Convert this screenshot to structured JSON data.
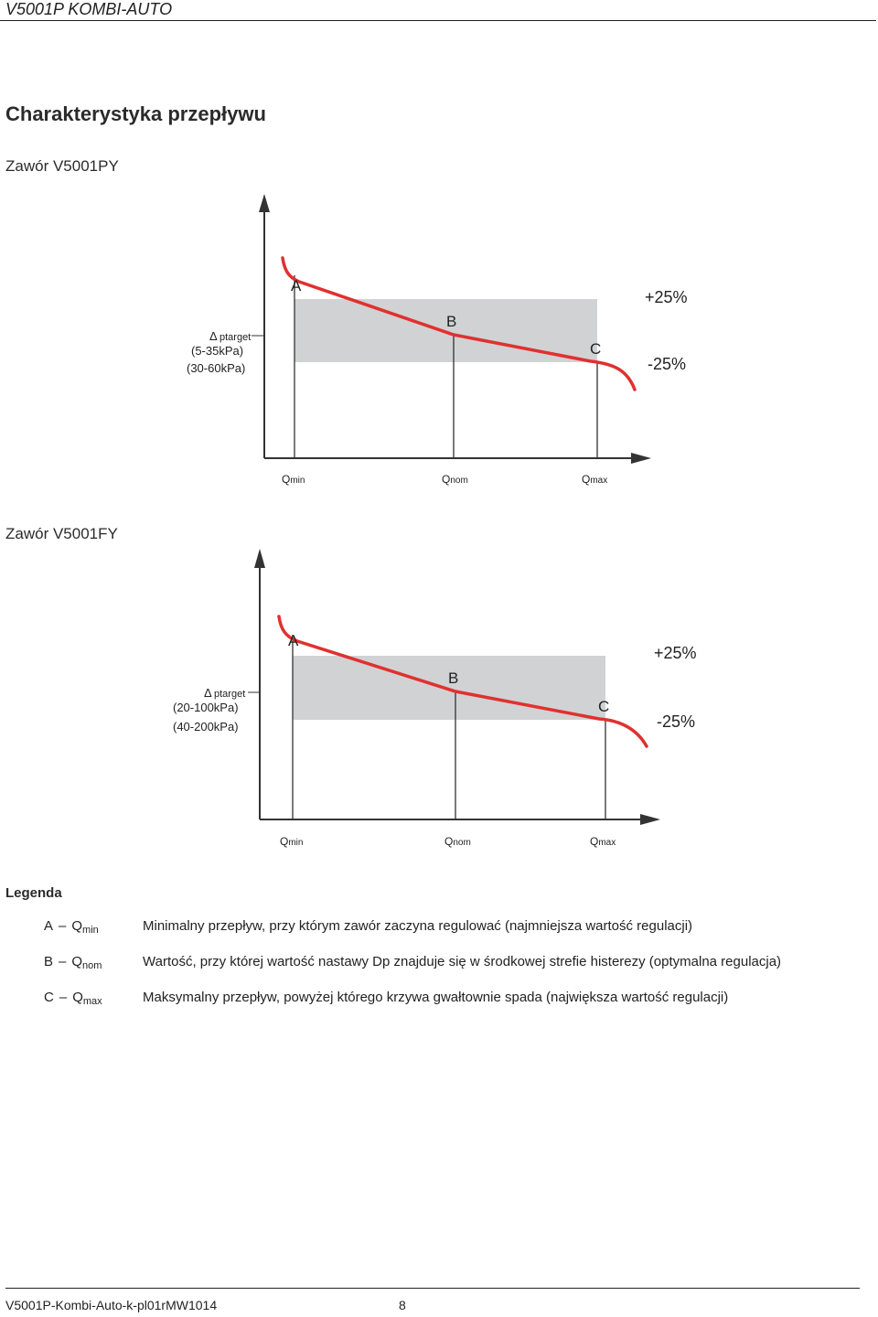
{
  "header": {
    "title": "V5001P  KOMBI-AUTO"
  },
  "section": {
    "title": "Charakterystyka przepływu"
  },
  "charts": [
    {
      "title": "Zawór V5001PY",
      "delta": "Δ",
      "ylabel": "ptarget",
      "ranges": [
        "(5-35kPa)",
        "(30-60kPa)"
      ],
      "points": [
        "A",
        "B",
        "C"
      ],
      "band": [
        "+25%",
        "-25%"
      ],
      "ticks": {
        "min_q": "Q",
        "min_sub": "min",
        "nom_q": "Q",
        "nom_sub": "nom",
        "max_q": "Q",
        "max_sub": "max"
      }
    },
    {
      "title": "Zawór V5001FY",
      "delta": "Δ",
      "ylabel": "ptarget",
      "ranges": [
        "(20-100kPa)",
        "(40-200kPa)"
      ],
      "points": [
        "A",
        "B",
        "C"
      ],
      "band": [
        "+25%",
        "-25%"
      ],
      "ticks": {
        "min_q": "Q",
        "min_sub": "min",
        "nom_q": "Q",
        "nom_sub": "nom",
        "max_q": "Q",
        "max_sub": "max"
      }
    }
  ],
  "chart_data": [
    {
      "type": "line",
      "title": "Zawór V5001PY",
      "ylabel": "Δptarget (5-35kPa) (30-60kPa)",
      "categories": [
        "Qmin",
        "Qnom",
        "Qmax"
      ],
      "points": [
        {
          "name": "A",
          "x": "Qmin"
        },
        {
          "name": "B",
          "x": "Qnom"
        },
        {
          "name": "C",
          "x": "Qmax"
        }
      ],
      "tolerance_band": [
        "+25%",
        "-25%"
      ],
      "colors": {
        "curve": "#e0312f",
        "band": "#d1d2d4",
        "axes": "#333333"
      }
    },
    {
      "type": "line",
      "title": "Zawór V5001FY",
      "ylabel": "Δptarget (20-100kPa) (40-200kPa)",
      "categories": [
        "Qmin",
        "Qnom",
        "Qmax"
      ],
      "points": [
        {
          "name": "A",
          "x": "Qmin"
        },
        {
          "name": "B",
          "x": "Qnom"
        },
        {
          "name": "C",
          "x": "Qmax"
        }
      ],
      "tolerance_band": [
        "+25%",
        "-25%"
      ],
      "colors": {
        "curve": "#e0312f",
        "band": "#d1d2d4",
        "axes": "#333333"
      }
    }
  ],
  "legend": {
    "title": "Legenda",
    "items": [
      {
        "code": "A",
        "q": "Q",
        "sub": "min",
        "desc": "Minimalny przepływ, przy którym zawór zaczyna regulować (najmniejsza wartość regulacji)"
      },
      {
        "code": "B",
        "q": "Q",
        "sub": "nom",
        "desc": "Wartość, przy której wartość nastawy Dp znajduje się w środkowej strefie histerezy (optymalna regulacja)"
      },
      {
        "code": "C",
        "q": "Q",
        "sub": "max",
        "desc": "Maksymalny przepływ, powyżej którego krzywa gwałtownie spada (największa wartość regulacji)"
      }
    ]
  },
  "footer": {
    "doc": "V5001P-Kombi-Auto-k-pl01rMW1014",
    "page": "8"
  }
}
